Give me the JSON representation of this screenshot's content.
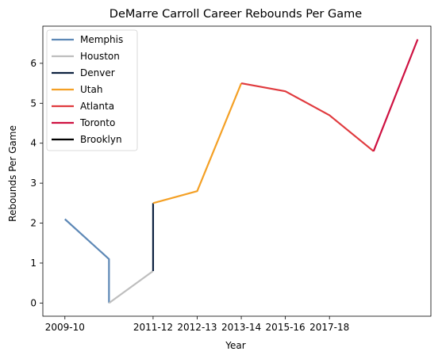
{
  "chart_data": {
    "type": "line",
    "title": "DeMarre Carroll Career Rebounds Per Game",
    "xlabel": "Year",
    "ylabel": "Rebounds Per Game",
    "x_tick_labels": [
      "2009-10",
      "2011-12",
      "2012-13",
      "2013-14",
      "2015-16",
      "2017-18"
    ],
    "x_tick_positions": [
      0,
      2,
      3,
      4,
      5,
      6
    ],
    "y_ticks": [
      0,
      1,
      2,
      3,
      4,
      5,
      6
    ],
    "xlim": [
      -0.5,
      8.3
    ],
    "ylim": [
      -0.33,
      6.93
    ],
    "grid": false,
    "legend_position": "top-left",
    "series": [
      {
        "name": "Memphis",
        "color": "#5d88b6",
        "points": [
          [
            0,
            2.1
          ],
          [
            1,
            1.1
          ],
          [
            1,
            0.0
          ]
        ]
      },
      {
        "name": "Houston",
        "color": "#bebebe",
        "points": [
          [
            1,
            0.0
          ],
          [
            2,
            0.8
          ]
        ]
      },
      {
        "name": "Denver",
        "color": "#0e2240",
        "points": [
          [
            2,
            0.8
          ],
          [
            2,
            2.5
          ]
        ]
      },
      {
        "name": "Utah",
        "color": "#f4a025",
        "points": [
          [
            2,
            2.5
          ],
          [
            3,
            2.8
          ],
          [
            4,
            5.5
          ]
        ]
      },
      {
        "name": "Atlanta",
        "color": "#e03a3e",
        "points": [
          [
            4,
            5.5
          ],
          [
            5,
            5.3
          ],
          [
            6,
            4.7
          ],
          [
            7,
            3.8
          ]
        ]
      },
      {
        "name": "Toronto",
        "color": "#ce1141",
        "points": [
          [
            7,
            3.8
          ],
          [
            8,
            6.6
          ]
        ]
      },
      {
        "name": "Brooklyn",
        "color": "#000000",
        "points": []
      }
    ]
  }
}
